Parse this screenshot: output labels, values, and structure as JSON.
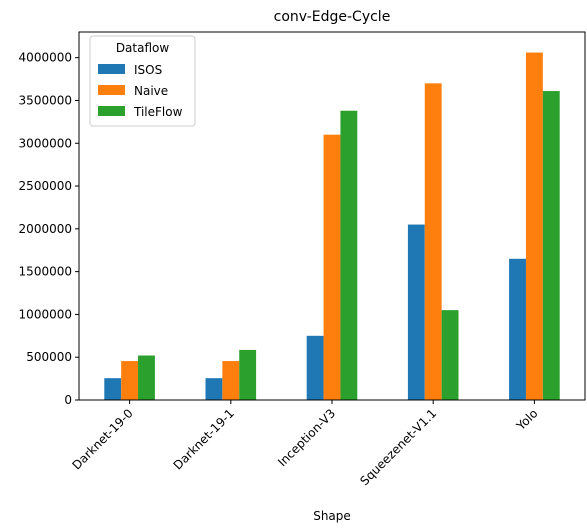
{
  "chart_data": {
    "type": "bar",
    "title": "conv-Edge-Cycle",
    "xlabel": "Shape",
    "ylabel": "",
    "categories": [
      "Darknet-19-0",
      "Darknet-19-1",
      "Inception-V3",
      "Squeezenet-V1.1",
      "Yolo"
    ],
    "series": [
      {
        "name": "ISOS",
        "color": "#1f77b4",
        "values": [
          255000,
          255000,
          750000,
          2050000,
          1650000
        ]
      },
      {
        "name": "Naive",
        "color": "#ff7f0e",
        "values": [
          455000,
          455000,
          3100000,
          3700000,
          4060000
        ]
      },
      {
        "name": "TileFlow",
        "color": "#2ca02c",
        "values": [
          520000,
          585000,
          3380000,
          1050000,
          3610000
        ]
      }
    ],
    "ylim": [
      0,
      4300000
    ],
    "yticks": [
      0,
      500000,
      1000000,
      1500000,
      2000000,
      2500000,
      3000000,
      3500000,
      4000000
    ],
    "ytick_labels": [
      "0",
      "500000",
      "1000000",
      "1500000",
      "2000000",
      "2500000",
      "3000000",
      "3500000",
      "4000000"
    ],
    "legend": {
      "title": "Dataflow",
      "placement": "top-left"
    },
    "grid": false
  }
}
